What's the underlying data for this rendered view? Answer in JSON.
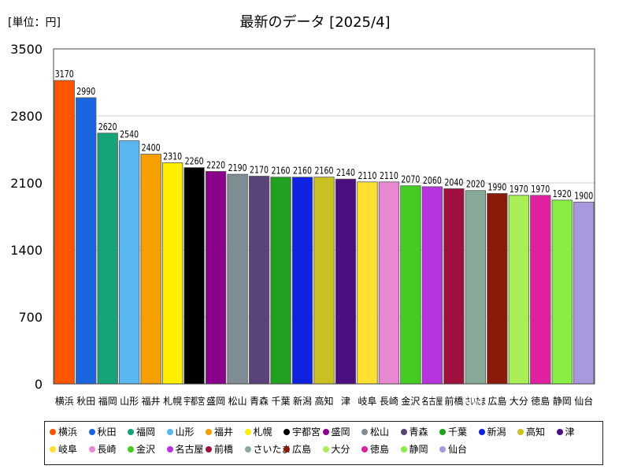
{
  "unit_label": "[単位：円]",
  "chart_data": {
    "type": "bar",
    "title": "最新のデータ [2025/4]",
    "ylabel": "",
    "xlabel": "",
    "ylim": [
      0,
      3500
    ],
    "yticks": [
      0,
      700,
      1400,
      2100,
      2800,
      3500
    ],
    "grid": true,
    "legend_position": "bottom",
    "categories": [
      "横浜",
      "秋田",
      "福岡",
      "山形",
      "福井",
      "札幌",
      "宇都宮",
      "盛岡",
      "松山",
      "青森",
      "千葉",
      "新潟",
      "高知",
      "津",
      "岐阜",
      "長崎",
      "金沢",
      "名古屋",
      "前橋",
      "さいたま",
      "広島",
      "大分",
      "徳島",
      "静岡",
      "仙台"
    ],
    "values": [
      3170,
      2990,
      2620,
      2540,
      2400,
      2310,
      2260,
      2220,
      2190,
      2170,
      2160,
      2160,
      2160,
      2140,
      2110,
      2110,
      2070,
      2060,
      2040,
      2020,
      1990,
      1970,
      1970,
      1920,
      1900
    ],
    "value_labels": [
      "3170",
      "2990",
      "2620",
      "2540",
      "2400",
      "2310",
      "2260",
      "2220",
      "2190",
      "2170",
      "2160",
      "2160",
      "2160",
      "2140",
      "2110",
      "2110",
      "2070",
      "2060",
      "2040",
      "2020",
      "1990",
      "1970",
      "1970",
      "1920",
      "1900"
    ],
    "colors": [
      "#ff5500",
      "#1b66e0",
      "#17a37a",
      "#59b8f0",
      "#f5a000",
      "#ffee00",
      "#000000",
      "#8b008b",
      "#7f8c93",
      "#5a437a",
      "#22a022",
      "#0e22e0",
      "#c9c022",
      "#4b0f7f",
      "#ffe030",
      "#e888d0",
      "#44cc22",
      "#b833e0",
      "#a0103c",
      "#88aa99",
      "#8b1a0a",
      "#aaee55",
      "#e020a0",
      "#88ee44",
      "#a899dd"
    ]
  }
}
